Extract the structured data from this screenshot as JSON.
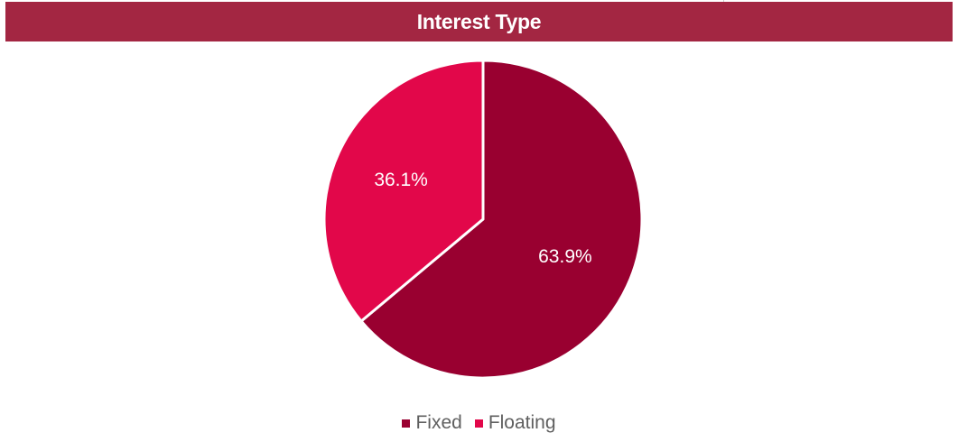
{
  "header": {
    "title": "Interest Type"
  },
  "colors": {
    "header_bg": "#a32642",
    "fixed": "#990030",
    "floating": "#e2074a"
  },
  "chart_data": {
    "type": "pie",
    "categories": [
      "Fixed",
      "Floating"
    ],
    "values": [
      63.9,
      36.1
    ],
    "labels": [
      "63.9%",
      "36.1%"
    ],
    "title": "Interest Type",
    "legend_position": "bottom"
  },
  "legend": {
    "items": [
      {
        "label": "Fixed",
        "color": "#990030"
      },
      {
        "label": "Floating",
        "color": "#e2074a"
      }
    ]
  }
}
